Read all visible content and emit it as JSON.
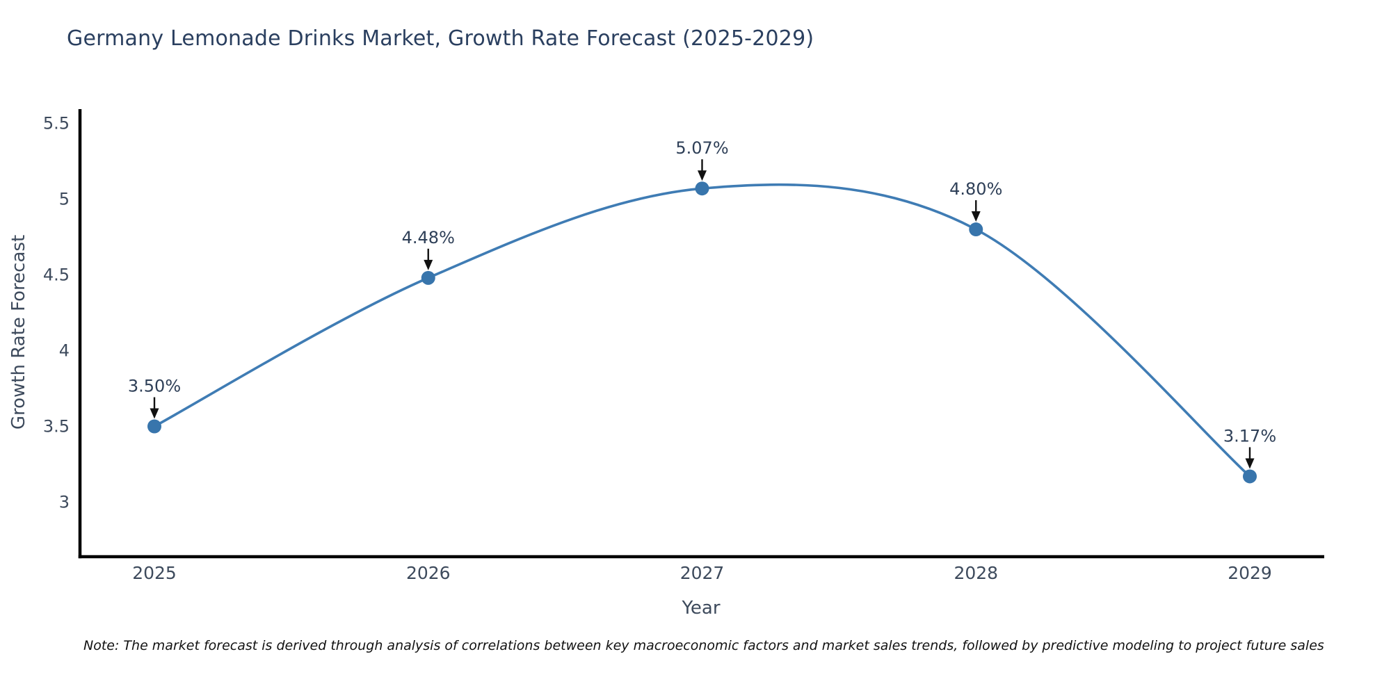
{
  "title": "Germany Lemonade Drinks Market, Growth Rate Forecast (2025-2029)",
  "note": "Note: The market forecast is derived through analysis of correlations between key macroeconomic factors and market sales trends, followed by predictive modeling to project future sales",
  "chart_data": {
    "type": "line",
    "title": "Germany Lemonade Drinks Market, Growth Rate Forecast (2025-2029)",
    "xlabel": "Year",
    "ylabel": "Growth Rate Forecast",
    "categories": [
      "2025",
      "2026",
      "2027",
      "2028",
      "2029"
    ],
    "values": [
      3.5,
      4.48,
      5.07,
      4.8,
      3.17
    ],
    "point_labels": [
      "3.50%",
      "4.48%",
      "5.07%",
      "4.80%",
      "3.17%"
    ],
    "y_ticks": [
      3,
      3.5,
      4,
      4.5,
      5,
      5.5
    ],
    "ylim": [
      2.64,
      5.58
    ],
    "line_shape": "spline",
    "grid": false,
    "legend": "none",
    "line_color": "#3f7cb4",
    "marker_color": "#3875ac",
    "axis_color": "#000000",
    "text_color": "#2e3f57",
    "tick_color": "#3d4a5c",
    "arrow_color": "#111111"
  }
}
